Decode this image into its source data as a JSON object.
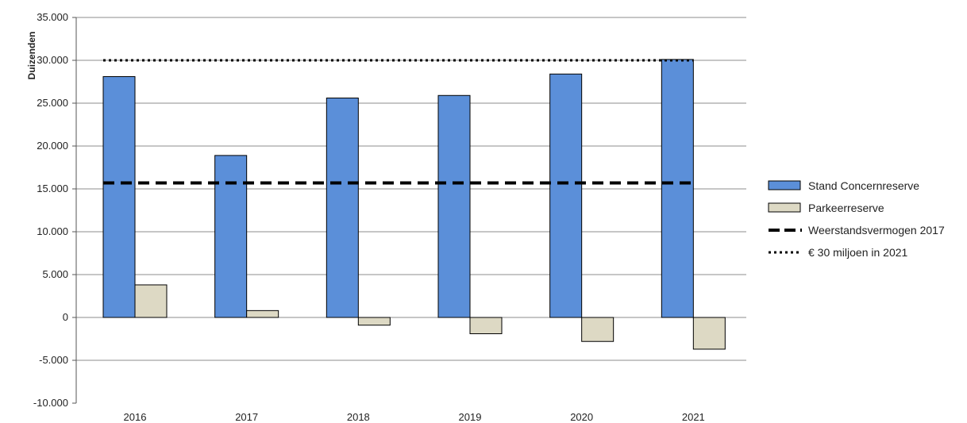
{
  "chart_data": {
    "type": "bar",
    "title": "",
    "xlabel": "",
    "ylabel": "Duizenden",
    "ylim": [
      -10000,
      35000
    ],
    "y_ticks": [
      "35.000",
      "30.000",
      "25.000",
      "20.000",
      "15.000",
      "10.000",
      "5.000",
      "0",
      "-5.000",
      "-10.000"
    ],
    "y_tick_values": [
      35000,
      30000,
      25000,
      20000,
      15000,
      10000,
      5000,
      0,
      -5000,
      -10000
    ],
    "grid": true,
    "legend_position": "right",
    "categories": [
      "2016",
      "2017",
      "2018",
      "2019",
      "2020",
      "2021"
    ],
    "series": [
      {
        "name": "Stand Concernreserve",
        "kind": "bar",
        "color": "#5b8fd9",
        "values": [
          28100,
          18900,
          25600,
          25900,
          28400,
          30100
        ]
      },
      {
        "name": "Parkeerreserve",
        "kind": "bar",
        "color": "#ddd9c4",
        "values": [
          3800,
          800,
          -900,
          -1900,
          -2800,
          -3700
        ]
      },
      {
        "name": "Weerstandsvermogen 2017",
        "kind": "line",
        "style": "dashed",
        "color": "#000000",
        "values": [
          15700,
          15700,
          15700,
          15700,
          15700,
          15700
        ]
      },
      {
        "name": "€ 30 miljoen in 2021",
        "kind": "line",
        "style": "dotted",
        "color": "#000000",
        "values": [
          30000,
          30000,
          30000,
          30000,
          30000,
          30000
        ]
      }
    ]
  }
}
